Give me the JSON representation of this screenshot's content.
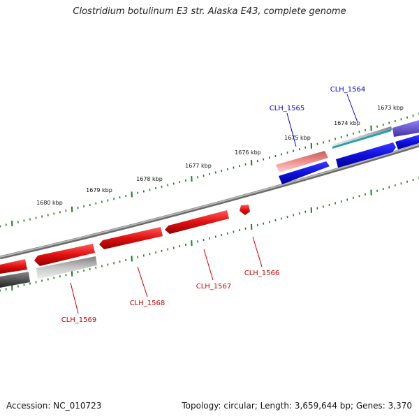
{
  "title": "Clostridium botulinum E3 str. Alaska E43, complete genome",
  "accession": "Accession: NC_010723",
  "summary": "Topology: circular; Length: 3,659,644 bp; Genes: 3,370",
  "colors": {
    "backbone": "#8a8a8a",
    "tick": "#1e7a1e",
    "forward_gene": "#1010e0",
    "forward_pseudo": "#6a5acd",
    "reverse_gene": "#e01010",
    "reverse_light": "#f08080",
    "reverse_gray": "#b0b0b0",
    "dark_gray": "#555555",
    "cyan": "#20a0b0",
    "forward_label": "#0000cc",
    "reverse_label": "#cc0000"
  },
  "ticks": [
    {
      "label": "1673 kbp"
    },
    {
      "label": "1674 kbp"
    },
    {
      "label": "1675 kbp"
    },
    {
      "label": "1676 kbp"
    },
    {
      "label": "1677 kbp"
    },
    {
      "label": "1678 kbp"
    },
    {
      "label": "1679 kbp"
    },
    {
      "label": "1680 kbp"
    }
  ],
  "gene_labels": [
    {
      "text": "CLH_1564",
      "strand": "forward"
    },
    {
      "text": "CLH_1565",
      "strand": "forward"
    },
    {
      "text": "CLH_1566",
      "strand": "reverse"
    },
    {
      "text": "CLH_1567",
      "strand": "reverse"
    },
    {
      "text": "CLH_1568",
      "strand": "reverse"
    },
    {
      "text": "CLH_1569",
      "strand": "reverse"
    }
  ]
}
